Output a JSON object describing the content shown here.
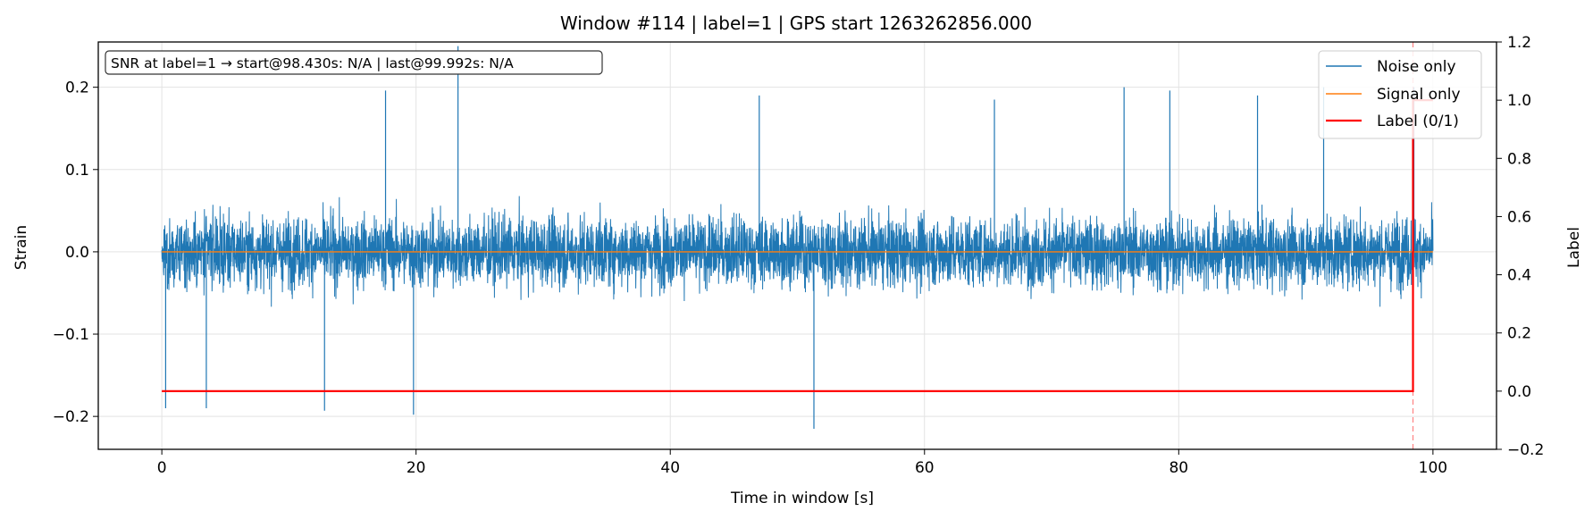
{
  "chart_data": {
    "type": "line",
    "title": "Window #114  |  label=1  |  GPS start 1263262856.000",
    "xlabel": "Time in window [s]",
    "ylabel": "Strain",
    "y2label": "Label",
    "xlim": [
      -5,
      105
    ],
    "ylim": [
      -0.24,
      0.255
    ],
    "y2lim": [
      -0.2,
      1.2
    ],
    "xticks": [
      0,
      20,
      40,
      60,
      80,
      100
    ],
    "yticks": [
      -0.2,
      -0.1,
      0.0,
      0.1,
      0.2
    ],
    "y2ticks": [
      -0.2,
      0.0,
      0.2,
      0.4,
      0.6,
      0.8,
      1.0,
      1.2
    ],
    "xtick_labels": [
      "0",
      "20",
      "40",
      "60",
      "80",
      "100"
    ],
    "ytick_labels": [
      "−0.2",
      "−0.1",
      "0.0",
      "0.1",
      "0.2"
    ],
    "y2tick_labels": [
      "−0.2",
      "0.0",
      "0.2",
      "0.4",
      "0.6",
      "0.8",
      "1.0",
      "1.2"
    ],
    "grid": true,
    "legend_position": "top-right",
    "annotation": "SNR at label=1 → start@98.430s: N/A | last@99.992s: N/A",
    "series": [
      {
        "name": "Noise only",
        "color": "#1f77b4",
        "axis": "left",
        "description": "dense noise trace spanning 0–100 s, envelope approx ±0.1",
        "x_range": [
          0,
          100
        ],
        "typical_envelope": [
          -0.1,
          0.1
        ],
        "peaks": [
          {
            "x": 0.3,
            "y": -0.19
          },
          {
            "x": 3.5,
            "y": -0.19
          },
          {
            "x": 12.8,
            "y": -0.193
          },
          {
            "x": 17.6,
            "y": 0.196
          },
          {
            "x": 19.8,
            "y": -0.198
          },
          {
            "x": 23.3,
            "y": 0.25
          },
          {
            "x": 47.0,
            "y": 0.19
          },
          {
            "x": 51.3,
            "y": -0.215
          },
          {
            "x": 65.5,
            "y": 0.185
          },
          {
            "x": 75.7,
            "y": 0.2
          },
          {
            "x": 79.3,
            "y": 0.196
          },
          {
            "x": 86.2,
            "y": 0.19
          },
          {
            "x": 91.4,
            "y": 0.2
          },
          {
            "x": 98.5,
            "y": 0.2
          }
        ]
      },
      {
        "name": "Signal only",
        "color": "#ff7f0e",
        "axis": "left",
        "x": [
          0,
          100
        ],
        "y": [
          0,
          0
        ]
      },
      {
        "name": "Label (0/1)",
        "color": "#ff0000",
        "axis": "right",
        "x": [
          0,
          98.43,
          98.43,
          100
        ],
        "y": [
          0,
          0,
          1,
          1
        ]
      }
    ],
    "vline": {
      "x": 98.43,
      "color": "#ff0000",
      "style": "dashed"
    }
  }
}
